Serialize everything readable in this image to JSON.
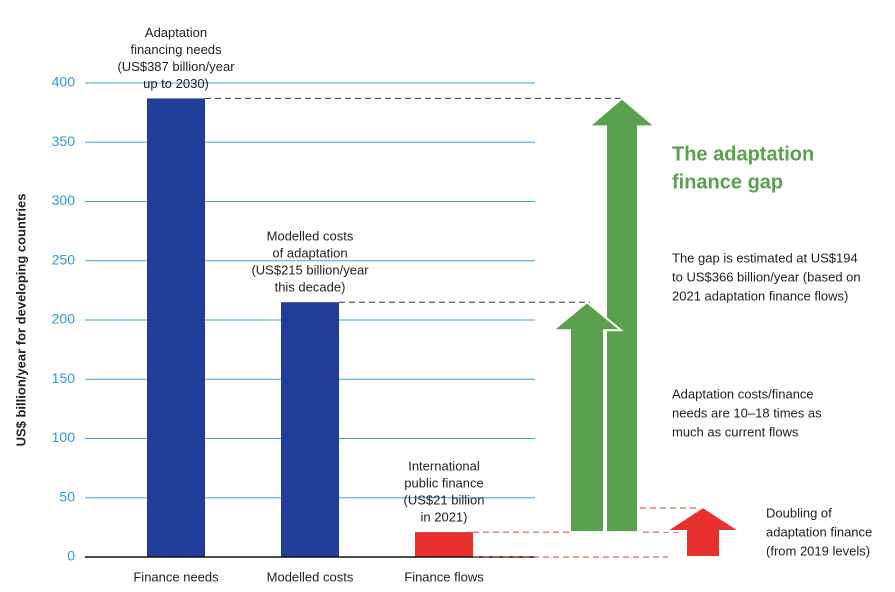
{
  "chart_data": {
    "type": "bar",
    "y_label": "US$ billion/year for developing countries",
    "categories": [
      "Finance needs",
      "Modelled costs",
      "Finance flows"
    ],
    "values": [
      387,
      215,
      21
    ],
    "colors": [
      "#1f3d99",
      "#1f3d99",
      "#e8302e"
    ],
    "ylim": [
      0,
      400
    ],
    "yticks": [
      0,
      50,
      100,
      150,
      200,
      250,
      300,
      350,
      400
    ],
    "grid": true,
    "bar_labels": [
      [
        "Adaptation",
        "financing needs",
        "(US$387 billion/year",
        "up to 2030)"
      ],
      [
        "Modelled costs",
        "of adaptation",
        "(US$215 billion/year",
        "this decade)"
      ],
      [
        "International",
        "public finance",
        "(US$21 billion",
        "in 2021)"
      ]
    ],
    "gap_title": [
      "The adaptation",
      "finance gap"
    ],
    "gap_color": "#5aa04e",
    "notes": [
      [
        "The gap is estimated at US$194",
        "to US$366 billion/year (based on",
        "2021 adaptation finance flows)"
      ],
      [
        "Adaptation costs/finance",
        "needs are 10–18 times as",
        "much as current flows"
      ],
      [
        "Doubling of",
        "adaptation finance",
        "(from 2019 levels)"
      ]
    ]
  }
}
